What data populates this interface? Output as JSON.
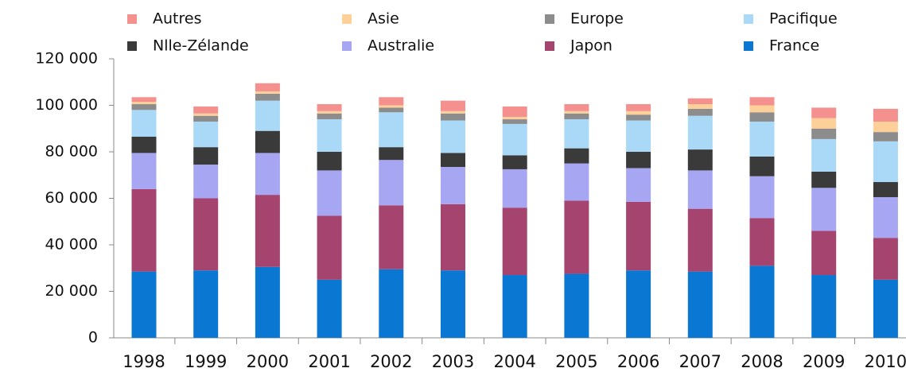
{
  "chart_data": {
    "type": "stacked_bar",
    "categories": [
      "1998",
      "1999",
      "2000",
      "2001",
      "2002",
      "2003",
      "2004",
      "2005",
      "2006",
      "2007",
      "2008",
      "2009",
      "2010"
    ],
    "series": [
      {
        "name": "France",
        "color": "#0a77d3",
        "values": [
          28500,
          29000,
          30500,
          25000,
          29500,
          29000,
          27000,
          27500,
          29000,
          28500,
          31000,
          27000,
          25000
        ]
      },
      {
        "name": "Japon",
        "color": "#a5446f",
        "values": [
          35500,
          31000,
          31000,
          27500,
          27500,
          28500,
          29000,
          31500,
          29500,
          27000,
          20500,
          19000,
          18000
        ]
      },
      {
        "name": "Australie",
        "color": "#a7a6f3",
        "values": [
          15500,
          14500,
          18000,
          19500,
          19500,
          16000,
          16500,
          16000,
          14500,
          16500,
          18000,
          18500,
          17500
        ]
      },
      {
        "name": "Nlle-Zélande",
        "color": "#3a3a3a",
        "values": [
          7000,
          7500,
          9500,
          8000,
          5500,
          6000,
          6000,
          6500,
          7000,
          9000,
          8500,
          7000,
          6500
        ]
      },
      {
        "name": "Pacifique",
        "color": "#a9d9f7",
        "values": [
          11500,
          11000,
          13000,
          14000,
          15000,
          14000,
          13500,
          12500,
          13500,
          14500,
          15000,
          14000,
          17500
        ]
      },
      {
        "name": "Europe",
        "color": "#8c8c8c",
        "values": [
          2500,
          2500,
          3000,
          2500,
          2000,
          3000,
          2000,
          2500,
          2500,
          3000,
          4000,
          4500,
          4000
        ]
      },
      {
        "name": "Asie",
        "color": "#fdd09a",
        "values": [
          1000,
          1000,
          1000,
          1000,
          1000,
          1000,
          1000,
          1000,
          1500,
          2000,
          3000,
          4500,
          4500
        ]
      },
      {
        "name": "Autres",
        "color": "#f4908e",
        "values": [
          2000,
          3000,
          3500,
          3000,
          3500,
          4500,
          4500,
          3000,
          3000,
          2500,
          3500,
          4500,
          5500
        ]
      }
    ],
    "ylim": [
      0,
      120000
    ],
    "yticks": [
      0,
      {
        "value": 20000,
        "label": "20 000"
      },
      {
        "value": 40000,
        "label": "40 000"
      },
      {
        "value": 60000,
        "label": "60 000"
      },
      {
        "value": 80000,
        "label": "80 000"
      },
      {
        "value": 100000,
        "label": "100 000"
      },
      {
        "value": 120000,
        "label": "120 000"
      }
    ],
    "legend": "top"
  }
}
